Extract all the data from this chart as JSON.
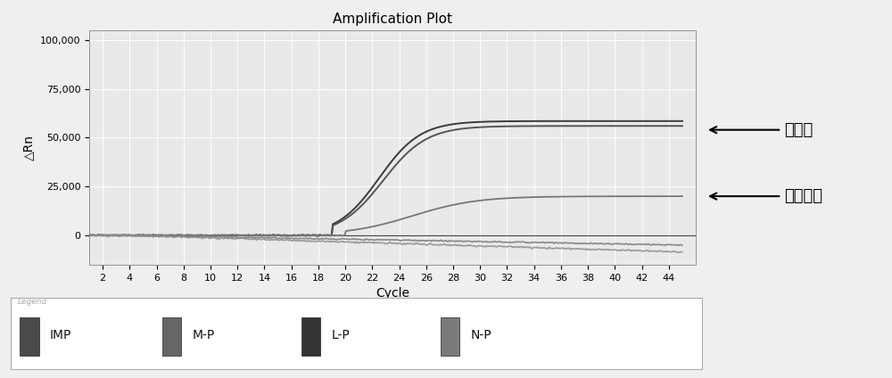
{
  "title": "Amplification Plot",
  "xlabel": "Cycle",
  "ylabel": "△Rn",
  "xlim": [
    1,
    46
  ],
  "ylim": [
    -15000,
    105000
  ],
  "yticks": [
    0,
    25000,
    50000,
    75000,
    100000
  ],
  "ytick_labels": [
    "0",
    "25,000",
    "50,000",
    "75,000",
    "100,000"
  ],
  "xticks": [
    2,
    4,
    6,
    8,
    10,
    12,
    14,
    16,
    18,
    20,
    22,
    24,
    26,
    28,
    30,
    32,
    34,
    36,
    38,
    40,
    42,
    44
  ],
  "bg_color": "#f0eeee",
  "plot_bg_color": "#eae8e8",
  "grid_color": "#ffffff",
  "annotation1": "牛源性",
  "annotation2": "内标质控",
  "legend_labels": [
    "IMP",
    "M-P",
    "L-P",
    "N-P"
  ],
  "legend_colors": [
    "#4a4a4a",
    "#666666",
    "#333333",
    "#7a7a7a"
  ],
  "curve1_color": "#3a3a3a",
  "curve2_color": "#555555",
  "curve3_color": "#777777",
  "curve4_color": "#999999",
  "curve5_color": "#888888"
}
